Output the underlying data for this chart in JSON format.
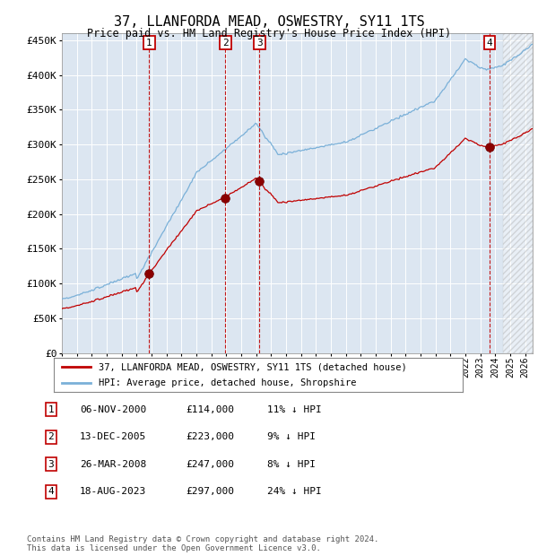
{
  "title": "37, LLANFORDA MEAD, OSWESTRY, SY11 1TS",
  "subtitle": "Price paid vs. HM Land Registry's House Price Index (HPI)",
  "legend_line1": "37, LLANFORDA MEAD, OSWESTRY, SY11 1TS (detached house)",
  "legend_line2": "HPI: Average price, detached house, Shropshire",
  "footer1": "Contains HM Land Registry data © Crown copyright and database right 2024.",
  "footer2": "This data is licensed under the Open Government Licence v3.0.",
  "table": [
    {
      "num": "1",
      "date": "06-NOV-2000",
      "price": "£114,000",
      "hpi": "11% ↓ HPI"
    },
    {
      "num": "2",
      "date": "13-DEC-2005",
      "price": "£223,000",
      "hpi": "9% ↓ HPI"
    },
    {
      "num": "3",
      "date": "26-MAR-2008",
      "price": "£247,000",
      "hpi": "8% ↓ HPI"
    },
    {
      "num": "4",
      "date": "18-AUG-2023",
      "price": "£297,000",
      "hpi": "24% ↓ HPI"
    }
  ],
  "sale_years": [
    2000.85,
    2005.95,
    2008.23,
    2023.63
  ],
  "sale_prices": [
    114000,
    223000,
    247000,
    297000
  ],
  "hpi_line_color": "#7ab0d8",
  "price_line_color": "#c00000",
  "sale_marker_color": "#8b0000",
  "marker_box_color": "#c00000",
  "plot_bg_color": "#dce6f1",
  "hatched_region_start": 2024.5,
  "ylim": [
    0,
    460000
  ],
  "xlim_start": 1995,
  "xlim_end": 2026.5,
  "yticks": [
    0,
    50000,
    100000,
    150000,
    200000,
    250000,
    300000,
    350000,
    400000,
    450000
  ],
  "xticks": [
    1995,
    1996,
    1997,
    1998,
    1999,
    2000,
    2001,
    2002,
    2003,
    2004,
    2005,
    2006,
    2007,
    2008,
    2009,
    2010,
    2011,
    2012,
    2013,
    2014,
    2015,
    2016,
    2017,
    2018,
    2019,
    2020,
    2021,
    2022,
    2023,
    2024,
    2025,
    2026
  ]
}
